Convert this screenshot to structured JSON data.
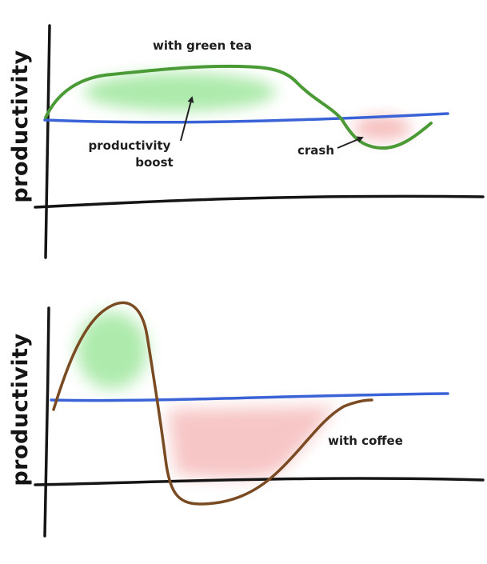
{
  "panels": [
    {
      "y_axis_label": "productivity",
      "curve_label": "with green tea",
      "annotations": {
        "boost": [
          "productivity",
          "boost"
        ],
        "crash": "crash"
      }
    },
    {
      "y_axis_label": "productivity",
      "curve_label": "with coffee"
    }
  ],
  "colors": {
    "baseline": "#3a63d8",
    "green_tea_curve": "#4a9a35",
    "coffee_curve": "#7a4a22",
    "boost_fill": "#5dd65a",
    "crash_fill": "#ef8c8c",
    "axis": "#151515"
  }
}
